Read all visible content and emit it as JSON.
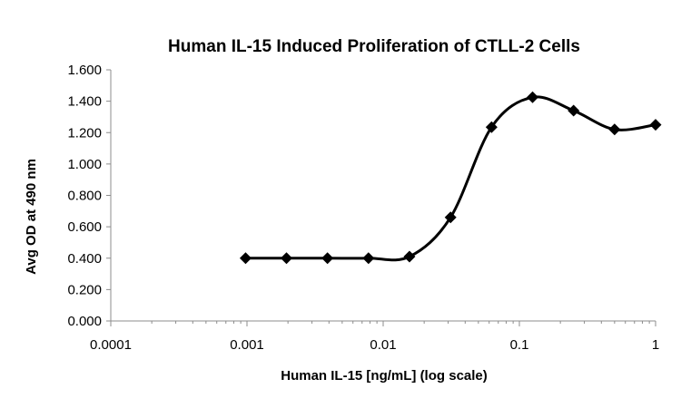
{
  "chart_data": {
    "type": "line",
    "title": "Human IL-15 Induced Proliferation of CTLL-2 Cells",
    "xlabel": "Human IL-15 [ng/mL] (log scale)",
    "ylabel": "Avg OD at 490 nm",
    "x_scale": "log",
    "xlim": [
      0.0001,
      1
    ],
    "ylim": [
      0,
      1.6
    ],
    "x_tick_labels": [
      "0.0001",
      "0.001",
      "0.01",
      "0.1",
      "1"
    ],
    "y_tick_labels": [
      "0.000",
      "0.200",
      "0.400",
      "0.600",
      "0.800",
      "1.000",
      "1.200",
      "1.400",
      "1.600"
    ],
    "grid": false,
    "legend": "none",
    "marker": "diamond",
    "line_color": "#000000",
    "smooth": true,
    "series": [
      {
        "x": [
          0.000977,
          0.00195,
          0.0039,
          0.0078,
          0.0156,
          0.03125,
          0.0625,
          0.125,
          0.25,
          0.5,
          1
        ],
        "values": [
          0.4,
          0.4,
          0.4,
          0.4,
          0.41,
          0.66,
          1.235,
          1.425,
          1.34,
          1.22,
          1.25
        ]
      }
    ]
  }
}
